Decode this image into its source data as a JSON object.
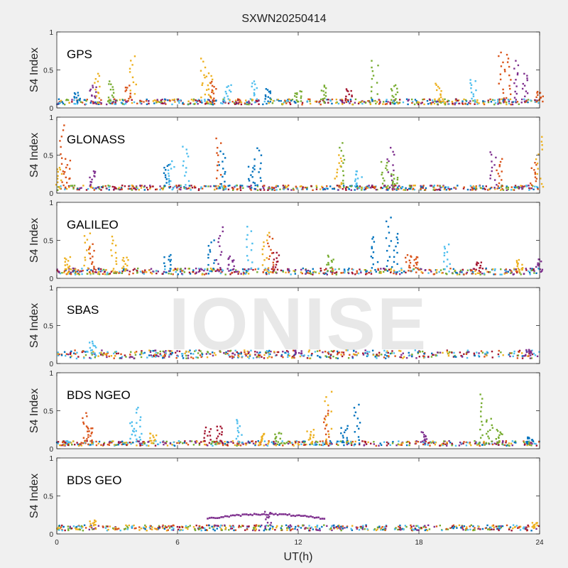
{
  "figure": {
    "title": "SXWN20250414",
    "watermark": "IONISE",
    "xlabel": "UT(h)",
    "xticks": [
      0,
      6,
      12,
      18,
      24
    ],
    "xlim": [
      0,
      24
    ]
  },
  "colors": [
    "#0072BD",
    "#D95319",
    "#EDB120",
    "#7E2F8E",
    "#77AC30",
    "#4DBEEE",
    "#A2142F"
  ],
  "chart_data": [
    {
      "type": "scatter",
      "label": "GPS",
      "ylabel": "S4 Index",
      "ylim": [
        0,
        1
      ],
      "yticks": [
        0,
        0.5,
        1
      ],
      "xlim": [
        0,
        24
      ],
      "baseline": 0.08,
      "spikes": [
        [
          1.0,
          0.2,
          0
        ],
        [
          2.0,
          0.45,
          2
        ],
        [
          1.8,
          0.3,
          3
        ],
        [
          2.7,
          0.35,
          4
        ],
        [
          3.8,
          0.68,
          2
        ],
        [
          3.5,
          0.3,
          1
        ],
        [
          7.3,
          0.65,
          2
        ],
        [
          7.6,
          0.47,
          2
        ],
        [
          7.8,
          0.35,
          1
        ],
        [
          8.5,
          0.3,
          5
        ],
        [
          9.8,
          0.35,
          5
        ],
        [
          10.5,
          0.25,
          0
        ],
        [
          12.0,
          0.22,
          4
        ],
        [
          13.3,
          0.3,
          4
        ],
        [
          14.5,
          0.25,
          6
        ],
        [
          15.8,
          0.62,
          4
        ],
        [
          16.8,
          0.3,
          4
        ],
        [
          19.0,
          0.32,
          2
        ],
        [
          20.7,
          0.38,
          5
        ],
        [
          22.1,
          0.73,
          1
        ],
        [
          22.4,
          0.7,
          1
        ],
        [
          22.9,
          0.62,
          3
        ],
        [
          23.3,
          0.45,
          3
        ],
        [
          24.0,
          0.22,
          1
        ]
      ]
    },
    {
      "type": "scatter",
      "label": "GLONASS",
      "ylabel": "S4 Index",
      "ylim": [
        0,
        1
      ],
      "yticks": [
        0,
        0.5,
        1
      ],
      "xlim": [
        0,
        24
      ],
      "baseline": 0.07,
      "spikes": [
        [
          0.3,
          0.9,
          1
        ],
        [
          0.5,
          0.45,
          1
        ],
        [
          0.1,
          0.35,
          2
        ],
        [
          1.8,
          0.3,
          3
        ],
        [
          5.5,
          0.38,
          0
        ],
        [
          5.7,
          0.42,
          5
        ],
        [
          6.4,
          0.62,
          5
        ],
        [
          8.1,
          0.72,
          1
        ],
        [
          8.2,
          0.55,
          0
        ],
        [
          10.0,
          0.6,
          0
        ],
        [
          9.7,
          0.35,
          0
        ],
        [
          14.2,
          0.66,
          4
        ],
        [
          14.0,
          0.5,
          2
        ],
        [
          15.0,
          0.3,
          5
        ],
        [
          16.3,
          0.42,
          4
        ],
        [
          16.6,
          0.6,
          3
        ],
        [
          16.8,
          0.25,
          4
        ],
        [
          21.7,
          0.55,
          3
        ],
        [
          22.0,
          0.45,
          1
        ],
        [
          23.7,
          0.4,
          1
        ],
        [
          24.0,
          0.75,
          2
        ]
      ]
    },
    {
      "type": "scatter",
      "label": "GALILEO",
      "ylabel": "S4 Index",
      "ylim": [
        0,
        1
      ],
      "yticks": [
        0,
        0.5,
        1
      ],
      "xlim": [
        0,
        24
      ],
      "baseline": 0.09,
      "spikes": [
        [
          0.5,
          0.28,
          2
        ],
        [
          1.5,
          0.6,
          2
        ],
        [
          1.7,
          0.45,
          1
        ],
        [
          2.8,
          0.55,
          2
        ],
        [
          3.4,
          0.28,
          2
        ],
        [
          5.5,
          0.32,
          0
        ],
        [
          7.7,
          0.5,
          0
        ],
        [
          8.1,
          0.68,
          3
        ],
        [
          8.7,
          0.3,
          3
        ],
        [
          9.6,
          0.68,
          5
        ],
        [
          10.4,
          0.6,
          2
        ],
        [
          10.6,
          0.55,
          1
        ],
        [
          10.9,
          0.35,
          6
        ],
        [
          13.6,
          0.3,
          4
        ],
        [
          15.8,
          0.55,
          0
        ],
        [
          16.5,
          0.8,
          0
        ],
        [
          16.8,
          0.6,
          0
        ],
        [
          17.5,
          0.32,
          1
        ],
        [
          17.9,
          0.28,
          1
        ],
        [
          19.4,
          0.45,
          5
        ],
        [
          21.0,
          0.22,
          6
        ],
        [
          23.0,
          0.25,
          2
        ],
        [
          24.0,
          0.25,
          3
        ]
      ]
    },
    {
      "type": "scatter",
      "label": "SBAS",
      "ylabel": "S4 Index",
      "ylim": [
        0,
        1
      ],
      "yticks": [
        0,
        0.5,
        1
      ],
      "xlim": [
        0,
        24
      ],
      "baseline": 0.12,
      "spikes": [
        [
          1.8,
          0.29,
          5
        ],
        [
          12.0,
          0.17,
          3
        ],
        [
          23.5,
          0.18,
          3
        ]
      ]
    },
    {
      "type": "scatter",
      "label": "BDS NGEO",
      "ylabel": "S4 Index",
      "ylim": [
        0,
        1
      ],
      "yticks": [
        0,
        0.5,
        1
      ],
      "xlim": [
        0,
        24
      ],
      "baseline": 0.07,
      "spikes": [
        [
          1.4,
          0.47,
          1
        ],
        [
          1.6,
          0.3,
          1
        ],
        [
          4.1,
          0.55,
          5
        ],
        [
          3.8,
          0.35,
          5
        ],
        [
          4.8,
          0.2,
          2
        ],
        [
          7.5,
          0.28,
          6
        ],
        [
          8.1,
          0.3,
          6
        ],
        [
          9.1,
          0.38,
          5
        ],
        [
          10.2,
          0.2,
          2
        ],
        [
          11.0,
          0.22,
          4
        ],
        [
          12.6,
          0.25,
          2
        ],
        [
          13.5,
          0.75,
          2
        ],
        [
          13.4,
          0.5,
          1
        ],
        [
          14.9,
          0.58,
          0
        ],
        [
          14.3,
          0.3,
          0
        ],
        [
          18.3,
          0.22,
          3
        ],
        [
          21.2,
          0.72,
          4
        ],
        [
          21.5,
          0.4,
          4
        ],
        [
          22.0,
          0.25,
          4
        ],
        [
          23.5,
          0.15,
          0
        ]
      ]
    },
    {
      "type": "scatter",
      "label": "BDS GEO",
      "ylabel": "S4 Index",
      "ylim": [
        0,
        1
      ],
      "yticks": [
        0,
        0.5,
        1
      ],
      "xlim": [
        0,
        24
      ],
      "baseline": 0.08,
      "spikes": [
        [
          1.8,
          0.18,
          2
        ],
        [
          10.5,
          0.3,
          3
        ],
        [
          23.8,
          0.15,
          2
        ]
      ],
      "arc": {
        "x_start": 7.5,
        "x_end": 13.3,
        "peak": 0.26,
        "color_index": 3
      }
    }
  ]
}
